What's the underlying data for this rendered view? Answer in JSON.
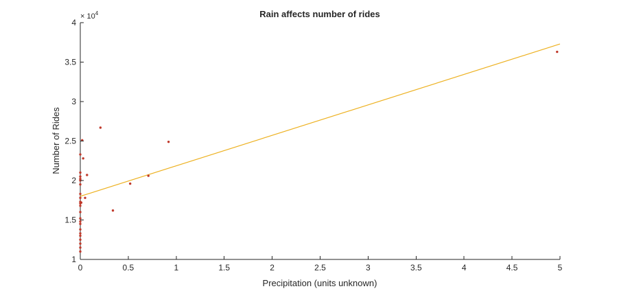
{
  "chart_data": {
    "type": "scatter",
    "title": "Rain affects number of rides",
    "xlabel": "Precipitation (units unknown)",
    "ylabel": "Number of Rides",
    "xlim": [
      0,
      5
    ],
    "ylim": [
      1,
      4
    ],
    "x_ticks": [
      "0",
      "0.5",
      "1",
      "1.5",
      "2",
      "2.5",
      "3",
      "3.5",
      "4",
      "4.5",
      "5"
    ],
    "y_ticks": [
      "1",
      "1.5",
      "2",
      "2.5",
      "3",
      "3.5",
      "4"
    ],
    "y_multiplier_base": "× 10",
    "y_multiplier_exp": "4",
    "grid": false,
    "point_color": "#C0392B",
    "line_color": "#EDB120",
    "points": [
      {
        "x": 0.0,
        "y": 1.1
      },
      {
        "x": 0.0,
        "y": 1.15
      },
      {
        "x": 0.0,
        "y": 1.2
      },
      {
        "x": 0.0,
        "y": 1.25
      },
      {
        "x": 0.0,
        "y": 1.3
      },
      {
        "x": 0.0,
        "y": 1.33
      },
      {
        "x": 0.0,
        "y": 1.38
      },
      {
        "x": 0.0,
        "y": 1.45
      },
      {
        "x": 0.0,
        "y": 1.48
      },
      {
        "x": 0.0,
        "y": 1.52
      },
      {
        "x": 0.0,
        "y": 1.6
      },
      {
        "x": 0.0,
        "y": 1.68
      },
      {
        "x": 0.0,
        "y": 1.71
      },
      {
        "x": 0.0,
        "y": 1.73
      },
      {
        "x": 0.0,
        "y": 1.78
      },
      {
        "x": 0.0,
        "y": 1.83
      },
      {
        "x": 0.0,
        "y": 1.95
      },
      {
        "x": 0.0,
        "y": 2.0
      },
      {
        "x": 0.0,
        "y": 2.02
      },
      {
        "x": 0.0,
        "y": 2.05
      },
      {
        "x": 0.0,
        "y": 2.1
      },
      {
        "x": 0.0,
        "y": 2.33
      },
      {
        "x": 0.01,
        "y": 1.72
      },
      {
        "x": 0.02,
        "y": 2.51
      },
      {
        "x": 0.03,
        "y": 2.28
      },
      {
        "x": 0.05,
        "y": 1.78
      },
      {
        "x": 0.07,
        "y": 2.07
      },
      {
        "x": 0.21,
        "y": 2.67
      },
      {
        "x": 0.34,
        "y": 1.62
      },
      {
        "x": 0.52,
        "y": 1.96
      },
      {
        "x": 0.71,
        "y": 2.06
      },
      {
        "x": 0.92,
        "y": 2.49
      },
      {
        "x": 4.97,
        "y": 3.63
      }
    ],
    "fit_line": {
      "x": [
        0,
        5
      ],
      "y": [
        1.8,
        3.73
      ]
    }
  }
}
